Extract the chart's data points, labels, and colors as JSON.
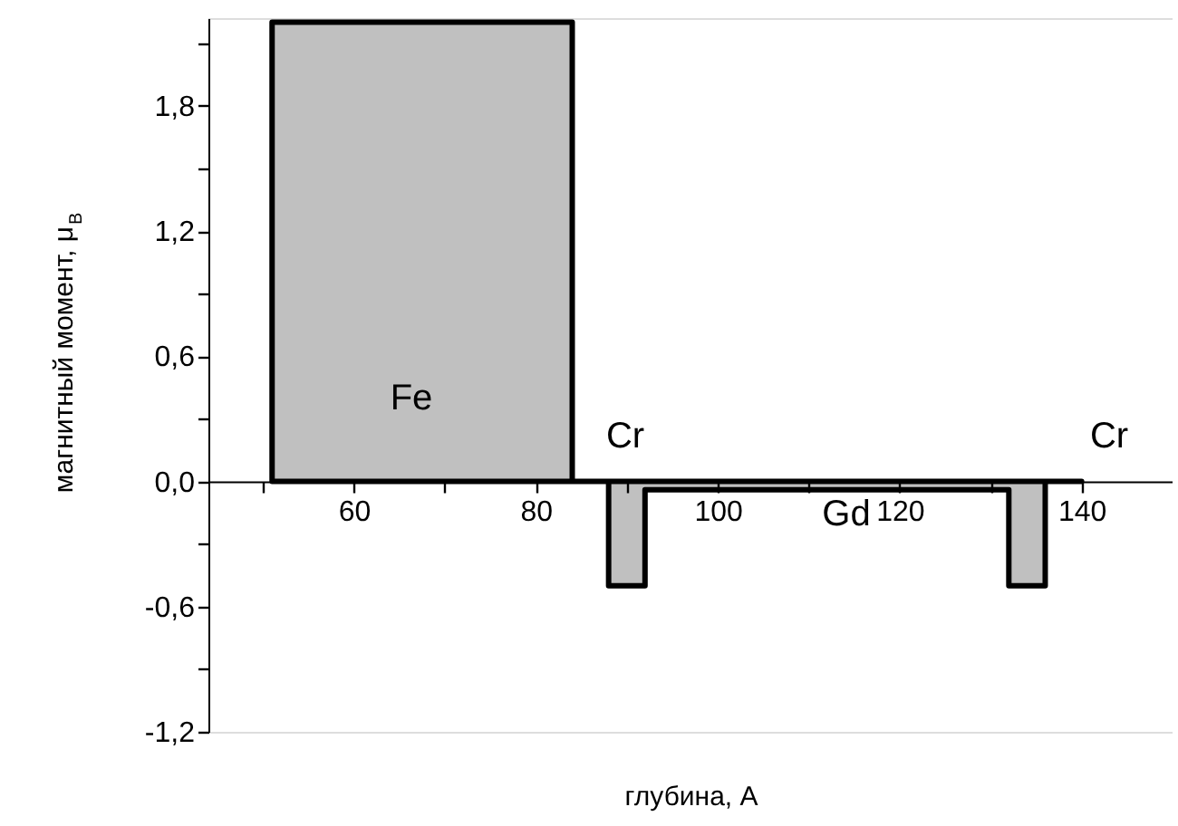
{
  "chart_data": {
    "type": "area",
    "xlabel": "глубина, А",
    "ylabel": "магнитный момент, μ$_{B}$",
    "series": [
      {
        "color": "#c0c0c0",
        "x": [
          51,
          84,
          88,
          92,
          132,
          136,
          140
        ],
        "values": [
          2.2,
          0,
          -0.5,
          -0.04,
          -0.5,
          0,
          0
        ]
      }
    ],
    "xlim": [
      44,
      150
    ],
    "xticks": [
      {
        "value": 50,
        "label": null
      },
      60,
      {
        "value": 70,
        "label": null
      },
      80,
      {
        "value": 90,
        "label": null
      },
      100,
      {
        "value": 110,
        "label": null
      },
      120,
      {
        "value": 130,
        "label": null
      },
      140
    ],
    "ylim": [
      -1.2,
      2.22
    ],
    "yticks": [
      {
        "value": -1.2,
        "label": "-1,2"
      },
      {
        "value": -0.9,
        "label": null
      },
      {
        "value": -0.6,
        "label": "-0,6"
      },
      {
        "value": -0.3,
        "label": null
      },
      {
        "value": 0,
        "label": "0,0"
      },
      {
        "value": 0.3,
        "label": null
      },
      {
        "value": 0.6,
        "label": "0,6"
      },
      {
        "value": 0.9,
        "label": null
      },
      {
        "value": 1.2,
        "label": "1,2"
      },
      {
        "value": 1.5,
        "label": null
      },
      {
        "value": 1.8,
        "label": "1,8"
      },
      {
        "value": 2.1,
        "label": null
      }
    ],
    "annotations": [
      "Fe",
      "Cr",
      "Gd",
      "Cr"
    ],
    "grid": false
  }
}
